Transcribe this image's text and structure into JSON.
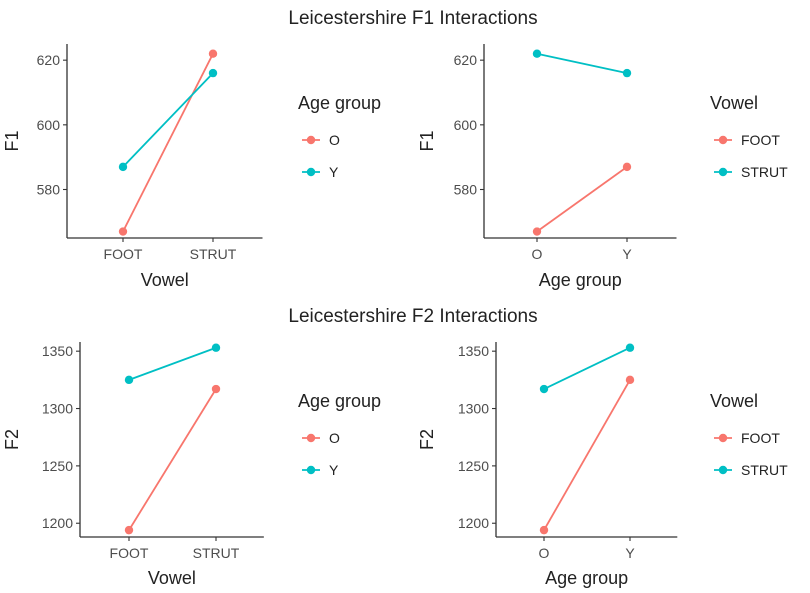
{
  "row_titles": [
    "Leicestershire F1 Interactions",
    "Leicestershire F2 Interactions"
  ],
  "colors": {
    "O": "#F8766D",
    "Y": "#00BFC4",
    "FOOT": "#F8766D",
    "STRUT": "#00BFC4"
  },
  "chart_data": [
    {
      "type": "line",
      "row_title": "Leicestershire F1 Interactions",
      "xlabel": "Vowel",
      "ylabel": "F1",
      "categories": [
        "FOOT",
        "STRUT"
      ],
      "ylim": [
        565,
        625
      ],
      "yticks": [
        580,
        600,
        620
      ],
      "legend_title": "Age group",
      "legend_position": "right",
      "series": [
        {
          "name": "O",
          "color": "#F8766D",
          "values": [
            567,
            622
          ]
        },
        {
          "name": "Y",
          "color": "#00BFC4",
          "values": [
            587,
            616
          ]
        }
      ]
    },
    {
      "type": "line",
      "xlabel": "Age group",
      "ylabel": "F1",
      "categories": [
        "O",
        "Y"
      ],
      "ylim": [
        565,
        625
      ],
      "yticks": [
        580,
        600,
        620
      ],
      "legend_title": "Vowel",
      "legend_position": "right",
      "series": [
        {
          "name": "FOOT",
          "color": "#F8766D",
          "values": [
            567,
            587
          ]
        },
        {
          "name": "STRUT",
          "color": "#00BFC4",
          "values": [
            622,
            616
          ]
        }
      ]
    },
    {
      "type": "line",
      "row_title": "Leicestershire F2 Interactions",
      "xlabel": "Vowel",
      "ylabel": "F2",
      "categories": [
        "FOOT",
        "STRUT"
      ],
      "ylim": [
        1188,
        1358
      ],
      "yticks": [
        1200,
        1250,
        1300,
        1350
      ],
      "legend_title": "Age group",
      "legend_position": "right",
      "series": [
        {
          "name": "O",
          "color": "#F8766D",
          "values": [
            1194,
            1317
          ]
        },
        {
          "name": "Y",
          "color": "#00BFC4",
          "values": [
            1325,
            1353
          ]
        }
      ]
    },
    {
      "type": "line",
      "xlabel": "Age group",
      "ylabel": "F2",
      "categories": [
        "O",
        "Y"
      ],
      "ylim": [
        1188,
        1358
      ],
      "yticks": [
        1200,
        1250,
        1300,
        1350
      ],
      "legend_title": "Vowel",
      "legend_position": "right",
      "series": [
        {
          "name": "FOOT",
          "color": "#F8766D",
          "values": [
            1194,
            1325
          ]
        },
        {
          "name": "STRUT",
          "color": "#00BFC4",
          "values": [
            1317,
            1353
          ]
        }
      ]
    }
  ]
}
